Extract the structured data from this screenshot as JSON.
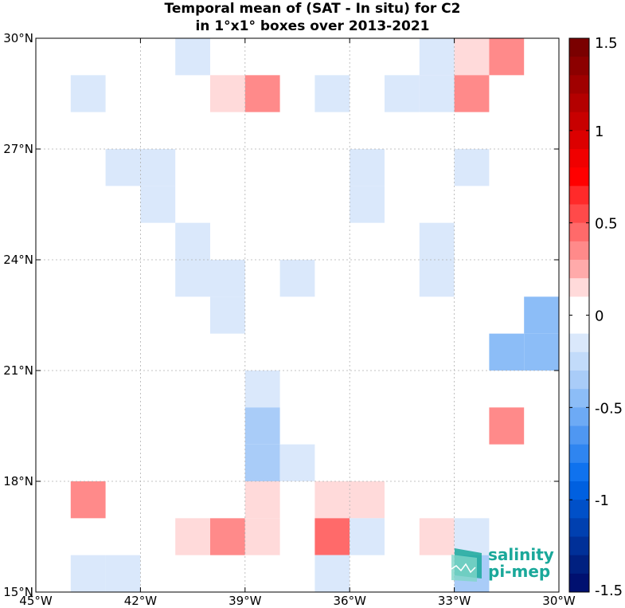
{
  "chart_data": {
    "type": "heatmap",
    "title_line1": "Temporal mean of (SAT - In situ) for C2",
    "title_line2": "in 1°x1° boxes over 2013-2021",
    "x_axis": {
      "range": [
        -45,
        -30
      ],
      "ticks": [
        -45,
        -42,
        -39,
        -36,
        -33,
        -30
      ],
      "tick_labels": [
        "45°W",
        "42°W",
        "39°W",
        "36°W",
        "33°W",
        "30°W"
      ]
    },
    "y_axis": {
      "range": [
        15,
        30
      ],
      "ticks": [
        15,
        18,
        21,
        24,
        27,
        30
      ],
      "tick_labels": [
        "15°N",
        "18°N",
        "21°N",
        "24°N",
        "27°N",
        "30°N"
      ]
    },
    "grid": true,
    "colorbar": {
      "range": [
        -1.5,
        1.5
      ],
      "ticks": [
        1.5,
        1,
        0.5,
        0,
        -0.5,
        -1,
        -1.5
      ],
      "tick_labels": [
        "1.5",
        "1",
        "0.5",
        "0",
        "-0.5",
        "-1",
        "-1.5"
      ],
      "colors_top_to_bottom": [
        "#7a0000",
        "#8c0000",
        "#a00000",
        "#b40000",
        "#c80000",
        "#dc0000",
        "#f00000",
        "#ff0000",
        "#ff2a2a",
        "#ff4a4a",
        "#ff6a6a",
        "#ff8a8a",
        "#ffaaaa",
        "#ffdada",
        "#ffffff",
        "#ffffff",
        "#dae8fb",
        "#c2dbfa",
        "#a9ccf8",
        "#8cbdf7",
        "#6daaf5",
        "#4f97f2",
        "#2f85f0",
        "#0f72ee",
        "#0060e0",
        "#0050c8",
        "#0040b0",
        "#003098",
        "#002080",
        "#001070"
      ]
    },
    "cells": [
      {
        "lon": -41,
        "lat": 29,
        "value": -0.1
      },
      {
        "lon": -34,
        "lat": 29,
        "value": -0.1
      },
      {
        "lon": -33,
        "lat": 29,
        "value": 0.15
      },
      {
        "lon": -32,
        "lat": 29,
        "value": 0.3
      },
      {
        "lon": -44,
        "lat": 28,
        "value": -0.1
      },
      {
        "lon": -40,
        "lat": 28,
        "value": 0.15
      },
      {
        "lon": -39,
        "lat": 28,
        "value": 0.35
      },
      {
        "lon": -37,
        "lat": 28,
        "value": -0.1
      },
      {
        "lon": -35,
        "lat": 28,
        "value": -0.1
      },
      {
        "lon": -34,
        "lat": 28,
        "value": -0.1
      },
      {
        "lon": -33,
        "lat": 28,
        "value": 0.3
      },
      {
        "lon": -43,
        "lat": 26,
        "value": -0.1
      },
      {
        "lon": -42,
        "lat": 26,
        "value": -0.1
      },
      {
        "lon": -36,
        "lat": 26,
        "value": -0.1
      },
      {
        "lon": -33,
        "lat": 26,
        "value": -0.1
      },
      {
        "lon": -42,
        "lat": 25,
        "value": -0.1
      },
      {
        "lon": -36,
        "lat": 25,
        "value": -0.1
      },
      {
        "lon": -41,
        "lat": 24,
        "value": -0.1
      },
      {
        "lon": -34,
        "lat": 24,
        "value": -0.1
      },
      {
        "lon": -41,
        "lat": 23,
        "value": -0.1
      },
      {
        "lon": -40,
        "lat": 23,
        "value": -0.1
      },
      {
        "lon": -38,
        "lat": 23,
        "value": -0.1
      },
      {
        "lon": -34,
        "lat": 23,
        "value": -0.1
      },
      {
        "lon": -40,
        "lat": 22,
        "value": -0.1
      },
      {
        "lon": -31,
        "lat": 22,
        "value": -0.4
      },
      {
        "lon": -32,
        "lat": 21,
        "value": -0.4
      },
      {
        "lon": -31,
        "lat": 21,
        "value": -0.4
      },
      {
        "lon": -39,
        "lat": 20,
        "value": -0.1
      },
      {
        "lon": -39,
        "lat": 19,
        "value": -0.3
      },
      {
        "lon": -32,
        "lat": 19,
        "value": 0.3
      },
      {
        "lon": -39,
        "lat": 18,
        "value": -0.3
      },
      {
        "lon": -38,
        "lat": 18,
        "value": -0.1
      },
      {
        "lon": -44,
        "lat": 17,
        "value": 0.3
      },
      {
        "lon": -39,
        "lat": 17,
        "value": 0.15
      },
      {
        "lon": -37,
        "lat": 17,
        "value": 0.15
      },
      {
        "lon": -36,
        "lat": 17,
        "value": 0.15
      },
      {
        "lon": -41,
        "lat": 16,
        "value": 0.15
      },
      {
        "lon": -40,
        "lat": 16,
        "value": 0.35
      },
      {
        "lon": -39,
        "lat": 16,
        "value": 0.15
      },
      {
        "lon": -37,
        "lat": 16,
        "value": 0.5
      },
      {
        "lon": -36,
        "lat": 16,
        "value": -0.1
      },
      {
        "lon": -34,
        "lat": 16,
        "value": 0.15
      },
      {
        "lon": -33,
        "lat": 16,
        "value": -0.1
      },
      {
        "lon": -44,
        "lat": 15,
        "value": -0.1
      },
      {
        "lon": -43,
        "lat": 15,
        "value": -0.1
      },
      {
        "lon": -37,
        "lat": 15,
        "value": -0.1
      },
      {
        "lon": -33,
        "lat": 15,
        "value": -0.3
      }
    ]
  },
  "logo": {
    "line1": "salinity",
    "line2": "pi-mep"
  }
}
